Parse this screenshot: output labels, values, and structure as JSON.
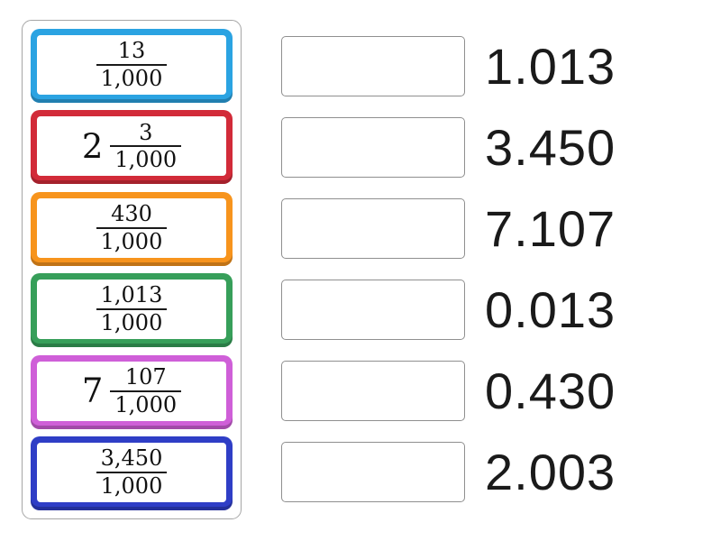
{
  "theme": {
    "panel-border": "#a6a6a6",
    "slot-border": "#8f8f8f",
    "text": "#111111"
  },
  "cards": [
    {
      "whole": "",
      "numerator": "13",
      "denominator": "1,000",
      "color": "#2BA3E2"
    },
    {
      "whole": "2",
      "numerator": "3",
      "denominator": "1,000",
      "color": "#D22B39"
    },
    {
      "whole": "",
      "numerator": "430",
      "denominator": "1,000",
      "color": "#F7941D"
    },
    {
      "whole": "",
      "numerator": "1,013",
      "denominator": "1,000",
      "color": "#379F5A"
    },
    {
      "whole": "7",
      "numerator": "107",
      "denominator": "1,000",
      "color": "#CF5FD8"
    },
    {
      "whole": "",
      "numerator": "3,450",
      "denominator": "1,000",
      "color": "#2F3EC6"
    }
  ],
  "answers": [
    {
      "label": "1.013"
    },
    {
      "label": "3.450"
    },
    {
      "label": "7.107"
    },
    {
      "label": "0.013"
    },
    {
      "label": "0.430"
    },
    {
      "label": "2.003"
    }
  ]
}
